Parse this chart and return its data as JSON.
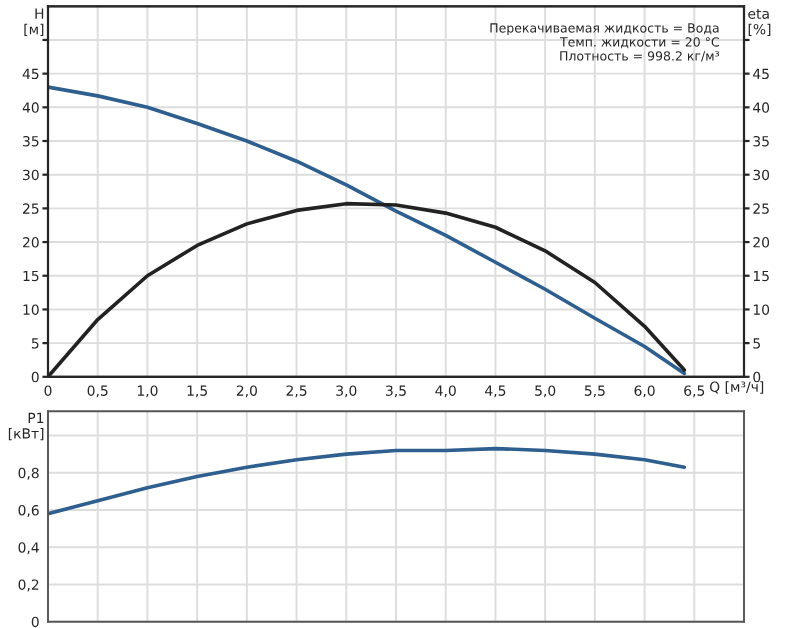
{
  "chart_data": [
    {
      "type": "line",
      "xlabel": "Q [м³/ч]",
      "ylabel": "H [м]",
      "y2label": "eta [%]",
      "annotations": [
        "Перекачиваемая жидкость = Вода",
        "Темп. жидкости = 20 °C",
        "Плотность = 998.2 кг/м³"
      ],
      "xlim": [
        0,
        7
      ],
      "xticks": [
        0,
        {
          "value": 0.5,
          "label": "0,5"
        },
        {
          "value": 1.0,
          "label": "1,0"
        },
        {
          "value": 1.5,
          "label": "1,5"
        },
        {
          "value": 2.0,
          "label": "2,0"
        },
        {
          "value": 2.5,
          "label": "2,5"
        },
        {
          "value": 3.0,
          "label": "3,0"
        },
        {
          "value": 3.5,
          "label": "3,5"
        },
        {
          "value": 4.0,
          "label": "4,0"
        },
        {
          "value": 4.5,
          "label": "4,5"
        },
        {
          "value": 5.0,
          "label": "5,0"
        },
        {
          "value": 5.5,
          "label": "5,5"
        },
        {
          "value": 6.0,
          "label": "6,0"
        },
        {
          "value": 6.5,
          "label": "6,5"
        }
      ],
      "ylim": [
        0,
        55
      ],
      "yticks": [
        0,
        5,
        10,
        15,
        20,
        25,
        30,
        35,
        40,
        45,
        {
          "value": 50,
          "label": null
        }
      ],
      "y2lim": [
        0,
        55
      ],
      "y2ticks": [
        0,
        5,
        10,
        15,
        20,
        25,
        30,
        35,
        40,
        45,
        {
          "value": 50,
          "label": null
        }
      ],
      "grid": true,
      "legend": false,
      "series": [
        {
          "color": "#2f5f8f",
          "x": [
            0,
            0.5,
            1.0,
            1.5,
            2.0,
            2.5,
            3.0,
            3.5,
            4.0,
            4.5,
            5.0,
            5.5,
            6.0,
            6.4
          ],
          "values": [
            43,
            41.7,
            40,
            37.6,
            35,
            32,
            28.5,
            24.6,
            21,
            17,
            13,
            8.7,
            4.5,
            0.5
          ]
        },
        {
          "color": "#222222",
          "axis": "y2",
          "x": [
            0,
            0.5,
            1.0,
            1.5,
            2.0,
            2.5,
            3.0,
            3.5,
            4.0,
            4.5,
            5.0,
            5.5,
            6.0,
            6.4
          ],
          "values": [
            0,
            8.5,
            15,
            19.5,
            22.7,
            24.7,
            25.7,
            25.5,
            24.3,
            22.2,
            18.7,
            14,
            7.5,
            1
          ]
        }
      ]
    },
    {
      "type": "line",
      "ylabel": "P1 [кВт]",
      "xlim": [
        0,
        7
      ],
      "xticks": [
        0,
        0.5,
        1.0,
        1.5,
        2.0,
        2.5,
        3.0,
        3.5,
        4.0,
        4.5,
        5.0,
        5.5,
        6.0,
        6.5
      ],
      "ylim": [
        0,
        1.13
      ],
      "yticks": [
        0,
        {
          "value": 0.2,
          "label": "0,2"
        },
        {
          "value": 0.4,
          "label": "0,4"
        },
        {
          "value": 0.6,
          "label": "0,6"
        },
        {
          "value": 0.8,
          "label": "0,8"
        },
        {
          "value": 1.0,
          "label": null
        }
      ],
      "tick_labels": "y",
      "grid": true,
      "legend": false,
      "series": [
        {
          "color": "#2f5f8f",
          "x": [
            0,
            0.5,
            1.0,
            1.5,
            2.0,
            2.5,
            3.0,
            3.5,
            4.0,
            4.5,
            5.0,
            5.5,
            6.0,
            6.4
          ],
          "values": [
            0.58,
            0.65,
            0.72,
            0.78,
            0.83,
            0.87,
            0.9,
            0.92,
            0.92,
            0.93,
            0.92,
            0.9,
            0.87,
            0.83
          ]
        }
      ]
    }
  ]
}
